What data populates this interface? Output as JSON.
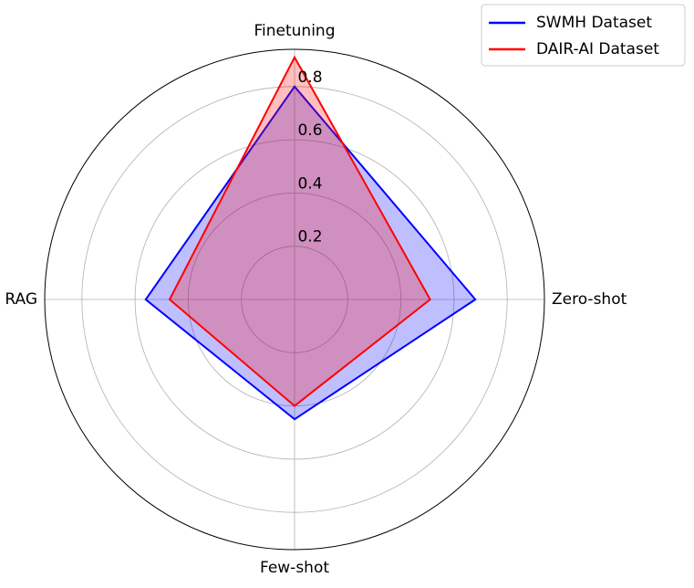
{
  "chart_data": {
    "type": "radar",
    "categories": [
      "Finetuning",
      "Zero-shot",
      "Few-shot",
      "RAG"
    ],
    "series": [
      {
        "name": "SWMH Dataset",
        "color": "#0000ff",
        "values": [
          0.8,
          0.68,
          0.45,
          0.56
        ]
      },
      {
        "name": "DAIR-AI Dataset",
        "color": "#ff0000",
        "values": [
          0.91,
          0.51,
          0.4,
          0.47
        ]
      }
    ],
    "ylim": [
      0,
      0.94
    ],
    "yticks": [
      0.2,
      0.4,
      0.6,
      0.8
    ],
    "grid": true,
    "legend": "upper right"
  }
}
